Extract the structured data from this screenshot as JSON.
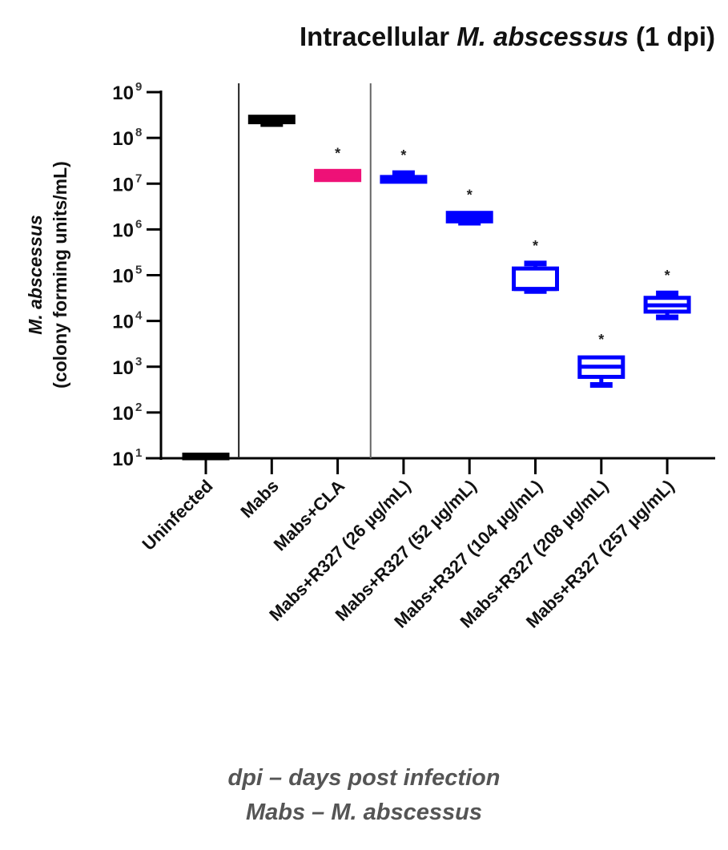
{
  "chart_data": {
    "type": "box",
    "title": "Intracellular M. abscessus (1 dpi)",
    "title_parts": [
      {
        "text": "Intracellular ",
        "italic": false
      },
      {
        "text": "M. abscessus",
        "italic": true
      },
      {
        "text": " (1 dpi)",
        "italic": false
      }
    ],
    "ylabel_line1": "M. abscessus",
    "ylabel_line2": "(colony forming units/mL)",
    "xlabel": "",
    "yscale": "log",
    "ylim": [
      10,
      1000000000
    ],
    "yticks": [
      {
        "base": "10",
        "exp": "1",
        "value": 10
      },
      {
        "base": "10",
        "exp": "2",
        "value": 100
      },
      {
        "base": "10",
        "exp": "3",
        "value": 1000
      },
      {
        "base": "10",
        "exp": "4",
        "value": 10000
      },
      {
        "base": "10",
        "exp": "5",
        "value": 100000
      },
      {
        "base": "10",
        "exp": "6",
        "value": 1000000
      },
      {
        "base": "10",
        "exp": "7",
        "value": 10000000
      },
      {
        "base": "10",
        "exp": "8",
        "value": 100000000
      },
      {
        "base": "10",
        "exp": "9",
        "value": 1000000000
      }
    ],
    "categories": [
      "Uninfected",
      "Mabs",
      "Mabs+CLA",
      "Mabs+R327 (26 µg/mL)",
      "Mabs+R327 (52 µg/mL)",
      "Mabs+R327 (104 µg/mL)",
      "Mabs+R327 (208 µg/mL)",
      "Mabs+R327 (257 µg/mL)"
    ],
    "boxes": [
      {
        "category": "Uninfected",
        "min": 10,
        "q1": 10,
        "median": 10,
        "q3": 12,
        "max": 12,
        "color": "#000000",
        "significant": false
      },
      {
        "category": "Mabs",
        "min": 200000000,
        "q1": 220000000,
        "median": 250000000,
        "q3": 290000000,
        "max": 300000000,
        "color": "#000000",
        "significant": false
      },
      {
        "category": "Mabs+CLA",
        "min": 12000000,
        "q1": 12000000,
        "median": 15000000,
        "q3": 19000000,
        "max": 19000000,
        "color": "#EE1177",
        "significant": true
      },
      {
        "category": "Mabs+R327 (26 µg/mL)",
        "min": 11000000,
        "q1": 11000000,
        "median": 12000000,
        "q3": 14000000,
        "max": 17000000,
        "color": "#0000FF",
        "significant": true
      },
      {
        "category": "Mabs+R327 (52 µg/mL)",
        "min": 1400000,
        "q1": 1500000,
        "median": 2000000,
        "q3": 2300000,
        "max": 2300000,
        "color": "#0000FF",
        "significant": true
      },
      {
        "category": "Mabs+R327 (104 µg/mL)",
        "min": 45000,
        "q1": 50000,
        "median": 50000,
        "q3": 140000,
        "max": 180000,
        "color": "#0000FF",
        "significant": true
      },
      {
        "category": "Mabs+R327 (208 µg/mL)",
        "min": 400,
        "q1": 600,
        "median": 1000,
        "q3": 1600,
        "max": 1600,
        "color": "#0000FF",
        "significant": true
      },
      {
        "category": "Mabs+R327 (257 µg/mL)",
        "min": 12000,
        "q1": 16000,
        "median": 22000,
        "q3": 32000,
        "max": 40000,
        "color": "#0000FF",
        "significant": true
      }
    ],
    "significance_marker": "*",
    "separators_after": [
      "Uninfected",
      "Mabs+CLA"
    ],
    "grid": false,
    "legend": null
  },
  "footnotes": [
    "dpi – days post infection",
    "Mabs – M. abscessus"
  ]
}
